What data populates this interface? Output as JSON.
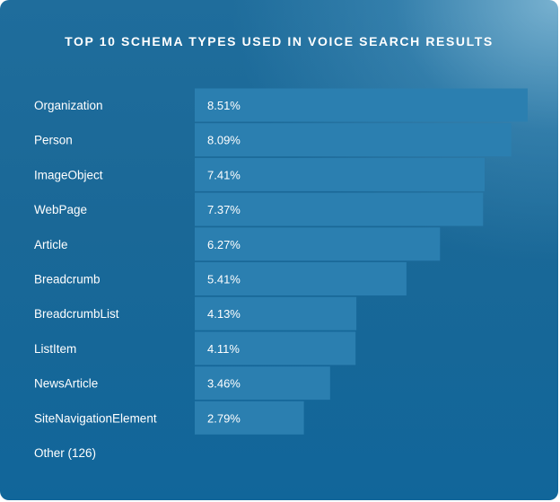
{
  "chart_data": {
    "type": "bar",
    "orientation": "horizontal",
    "title": "TOP 10 SCHEMA TYPES USED IN VOICE SEARCH RESULTS",
    "categories": [
      "Organization",
      "Person",
      "ImageObject",
      "WebPage",
      "Article",
      "Breadcrumb",
      "BreadcrumbList",
      "ListItem",
      "NewsArticle",
      "SiteNavigationElement",
      "Other (126)"
    ],
    "values": [
      8.51,
      8.09,
      7.41,
      7.37,
      6.27,
      5.41,
      4.13,
      4.11,
      3.46,
      2.79,
      null
    ],
    "value_labels": [
      "8.51%",
      "8.09%",
      "7.41%",
      "7.37%",
      "6.27%",
      "5.41%",
      "4.13%",
      "4.11%",
      "3.46%",
      "2.79%",
      ""
    ],
    "xlim": [
      0,
      8.51
    ],
    "grid": false,
    "bar_color": "#2b7fb0"
  }
}
